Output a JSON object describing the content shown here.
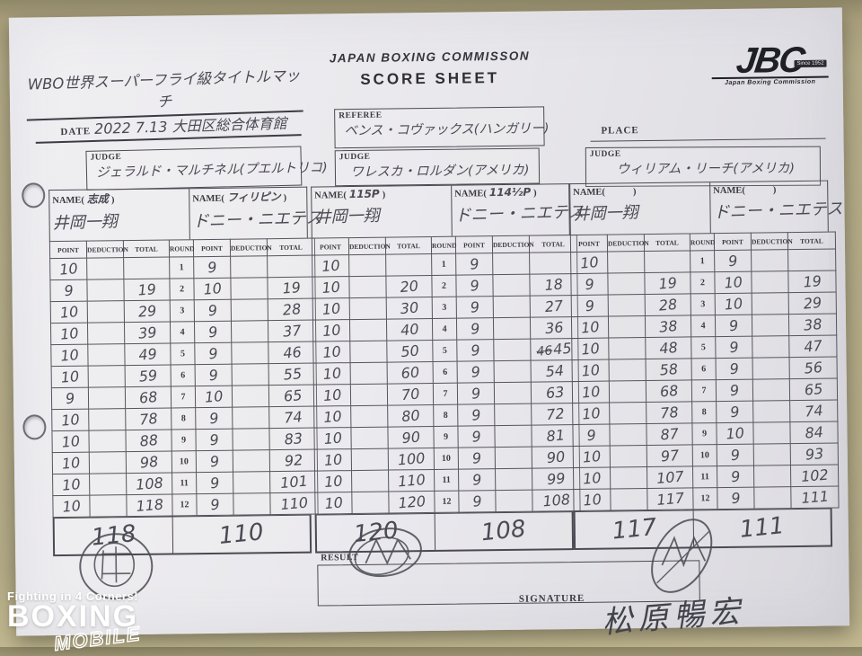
{
  "header": {
    "commission": "JAPAN BOXING COMMISSON",
    "sheet_title": "SCORE SHEET"
  },
  "logo": {
    "jbc": "JBC",
    "since": "Since 1952",
    "subtitle": "Japan Boxing Commission"
  },
  "match": {
    "title": "WBO世界スーパーフライ級タイトルマッチ",
    "date_label": "DATE",
    "date_value": "2022 7.13 大田区総合体育館",
    "place_label": "PLACE",
    "place_value": ""
  },
  "referee": {
    "label": "REFEREE",
    "name": "ベンス・コヴァックス(ハンガリー)"
  },
  "judges": [
    {
      "label": "JUDGE",
      "name": "ジェラルド・マルチネル(プエルトリコ)"
    },
    {
      "label": "JUDGE",
      "name": "ワレスカ・ロルダン(アメリカ)"
    },
    {
      "label": "JUDGE",
      "name": "ウィリアム・リーチ(アメリカ)"
    }
  ],
  "result": {
    "label": "RESULT",
    "value": ""
  },
  "signature": {
    "label": "SIGNATURE",
    "value": "松原暢宏"
  },
  "table_labels": {
    "name_prefix": "NAME(",
    "name_suffix": ")"
  },
  "score_columns": [
    "POINT",
    "DEDUCTION",
    "TOTAL",
    "ROUND",
    "POINT",
    "DEDUCTION",
    "TOTAL"
  ],
  "score_tables": [
    {
      "boxer_a": {
        "paren_note": "志成",
        "name": "井岡一翔"
      },
      "boxer_b": {
        "paren_note": "フィリピン",
        "name": "ドニー・ニエテス"
      },
      "rounds": [
        {
          "round": "1",
          "a_point": "10",
          "a_ded": "",
          "a_total": "",
          "b_point": "9",
          "b_ded": "",
          "b_total": ""
        },
        {
          "round": "2",
          "a_point": "9",
          "a_ded": "",
          "a_total": "19",
          "b_point": "10",
          "b_ded": "",
          "b_total": "19"
        },
        {
          "round": "3",
          "a_point": "10",
          "a_ded": "",
          "a_total": "29",
          "b_point": "9",
          "b_ded": "",
          "b_total": "28"
        },
        {
          "round": "4",
          "a_point": "10",
          "a_ded": "",
          "a_total": "39",
          "b_point": "9",
          "b_ded": "",
          "b_total": "37"
        },
        {
          "round": "5",
          "a_point": "10",
          "a_ded": "",
          "a_total": "49",
          "b_point": "9",
          "b_ded": "",
          "b_total": "46"
        },
        {
          "round": "6",
          "a_point": "10",
          "a_ded": "",
          "a_total": "59",
          "b_point": "9",
          "b_ded": "",
          "b_total": "55"
        },
        {
          "round": "7",
          "a_point": "9",
          "a_ded": "",
          "a_total": "68",
          "b_point": "10",
          "b_ded": "",
          "b_total": "65"
        },
        {
          "round": "8",
          "a_point": "10",
          "a_ded": "",
          "a_total": "78",
          "b_point": "9",
          "b_ded": "",
          "b_total": "74"
        },
        {
          "round": "9",
          "a_point": "10",
          "a_ded": "",
          "a_total": "88",
          "b_point": "9",
          "b_ded": "",
          "b_total": "83"
        },
        {
          "round": "10",
          "a_point": "10",
          "a_ded": "",
          "a_total": "98",
          "b_point": "9",
          "b_ded": "",
          "b_total": "92"
        },
        {
          "round": "11",
          "a_point": "10",
          "a_ded": "",
          "a_total": "108",
          "b_point": "9",
          "b_ded": "",
          "b_total": "101"
        },
        {
          "round": "12",
          "a_point": "10",
          "a_ded": "",
          "a_total": "118",
          "b_point": "9",
          "b_ded": "",
          "b_total": "110"
        }
      ],
      "totals": {
        "a": "118",
        "b": "110"
      }
    },
    {
      "boxer_a": {
        "paren_note": "115P",
        "name": "井岡一翔"
      },
      "boxer_b": {
        "paren_note": "114½P",
        "name": "ドニー・ニエテス"
      },
      "rounds": [
        {
          "round": "1",
          "a_point": "10",
          "a_ded": "",
          "a_total": "",
          "b_point": "9",
          "b_ded": "",
          "b_total": ""
        },
        {
          "round": "2",
          "a_point": "10",
          "a_ded": "",
          "a_total": "20",
          "b_point": "9",
          "b_ded": "",
          "b_total": "18"
        },
        {
          "round": "3",
          "a_point": "10",
          "a_ded": "",
          "a_total": "30",
          "b_point": "9",
          "b_ded": "",
          "b_total": "27"
        },
        {
          "round": "4",
          "a_point": "10",
          "a_ded": "",
          "a_total": "40",
          "b_point": "9",
          "b_ded": "",
          "b_total": "36"
        },
        {
          "round": "5",
          "a_point": "10",
          "a_ded": "",
          "a_total": "50",
          "b_point": "9",
          "b_ded": "",
          "b_total": "45",
          "b_total_struck": "46"
        },
        {
          "round": "6",
          "a_point": "10",
          "a_ded": "",
          "a_total": "60",
          "b_point": "9",
          "b_ded": "",
          "b_total": "54"
        },
        {
          "round": "7",
          "a_point": "10",
          "a_ded": "",
          "a_total": "70",
          "b_point": "9",
          "b_ded": "",
          "b_total": "63"
        },
        {
          "round": "8",
          "a_point": "10",
          "a_ded": "",
          "a_total": "80",
          "b_point": "9",
          "b_ded": "",
          "b_total": "72"
        },
        {
          "round": "9",
          "a_point": "10",
          "a_ded": "",
          "a_total": "90",
          "b_point": "9",
          "b_ded": "",
          "b_total": "81"
        },
        {
          "round": "10",
          "a_point": "10",
          "a_ded": "",
          "a_total": "100",
          "b_point": "9",
          "b_ded": "",
          "b_total": "90"
        },
        {
          "round": "11",
          "a_point": "10",
          "a_ded": "",
          "a_total": "110",
          "b_point": "9",
          "b_ded": "",
          "b_total": "99"
        },
        {
          "round": "12",
          "a_point": "10",
          "a_ded": "",
          "a_total": "120",
          "b_point": "9",
          "b_ded": "",
          "b_total": "108"
        }
      ],
      "totals": {
        "a": "120",
        "b": "108"
      }
    },
    {
      "boxer_a": {
        "paren_note": "",
        "name": "井岡一翔"
      },
      "boxer_b": {
        "paren_note": "",
        "name": "ドニー・ニエテス"
      },
      "rounds": [
        {
          "round": "1",
          "a_point": "10",
          "a_ded": "",
          "a_total": "",
          "b_point": "9",
          "b_ded": "",
          "b_total": ""
        },
        {
          "round": "2",
          "a_point": "9",
          "a_ded": "",
          "a_total": "19",
          "b_point": "10",
          "b_ded": "",
          "b_total": "19"
        },
        {
          "round": "3",
          "a_point": "9",
          "a_ded": "",
          "a_total": "28",
          "b_point": "10",
          "b_ded": "",
          "b_total": "29"
        },
        {
          "round": "4",
          "a_point": "10",
          "a_ded": "",
          "a_total": "38",
          "b_point": "9",
          "b_ded": "",
          "b_total": "38"
        },
        {
          "round": "5",
          "a_point": "10",
          "a_ded": "",
          "a_total": "48",
          "b_point": "9",
          "b_ded": "",
          "b_total": "47"
        },
        {
          "round": "6",
          "a_point": "10",
          "a_ded": "",
          "a_total": "58",
          "b_point": "9",
          "b_ded": "",
          "b_total": "56"
        },
        {
          "round": "7",
          "a_point": "10",
          "a_ded": "",
          "a_total": "68",
          "b_point": "9",
          "b_ded": "",
          "b_total": "65"
        },
        {
          "round": "8",
          "a_point": "10",
          "a_ded": "",
          "a_total": "78",
          "b_point": "9",
          "b_ded": "",
          "b_total": "74"
        },
        {
          "round": "9",
          "a_point": "9",
          "a_ded": "",
          "a_total": "87",
          "b_point": "10",
          "b_ded": "",
          "b_total": "84"
        },
        {
          "round": "10",
          "a_point": "10",
          "a_ded": "",
          "a_total": "97",
          "b_point": "9",
          "b_ded": "",
          "b_total": "93"
        },
        {
          "round": "11",
          "a_point": "10",
          "a_ded": "",
          "a_total": "107",
          "b_point": "9",
          "b_ded": "",
          "b_total": "102"
        },
        {
          "round": "12",
          "a_point": "10",
          "a_ded": "",
          "a_total": "117",
          "b_point": "9",
          "b_ded": "",
          "b_total": "111"
        }
      ],
      "totals": {
        "a": "117",
        "b": "111"
      }
    }
  ],
  "watermark": {
    "line1": "Fighting in 4 Corners!",
    "line2": "BOXING",
    "line3": "MOBILE"
  }
}
